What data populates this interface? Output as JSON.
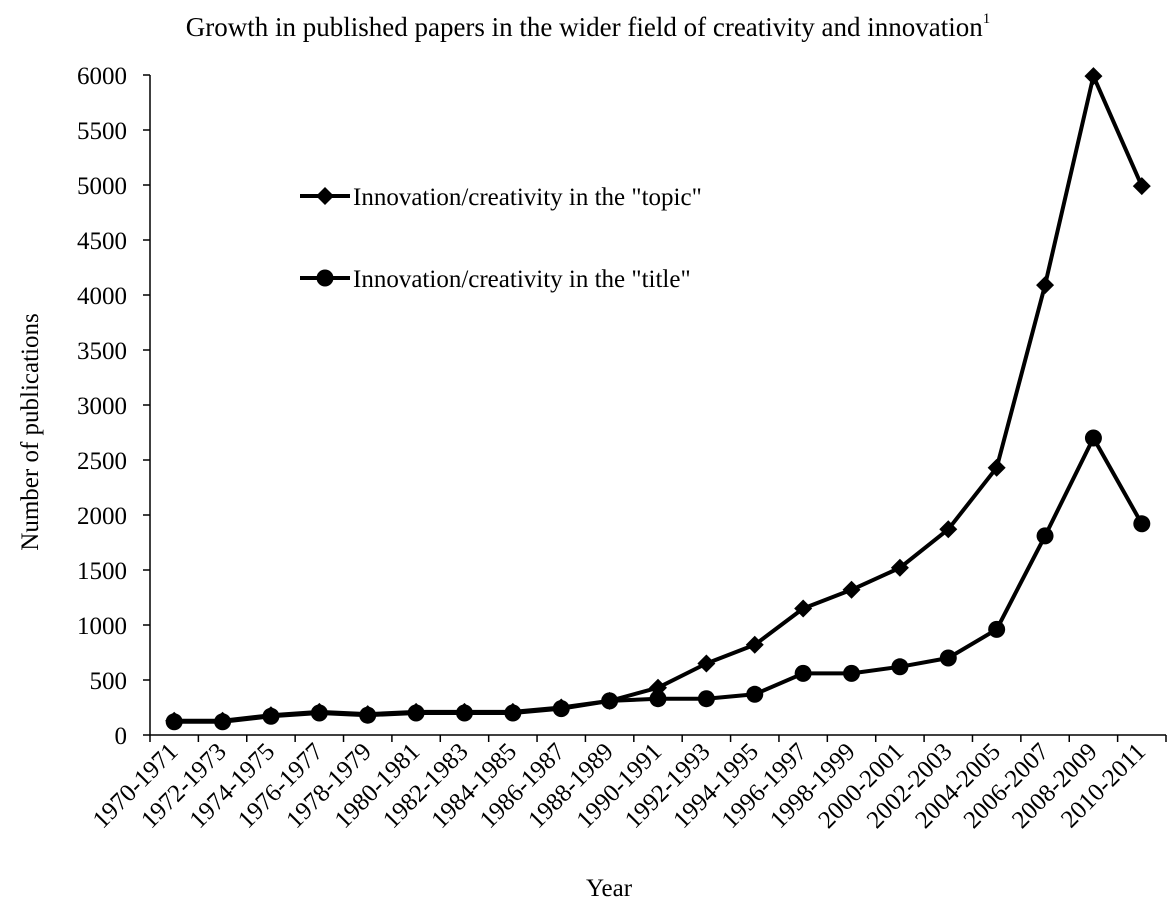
{
  "chart_data": {
    "type": "line",
    "title": "Growth in published papers in the wider field of creativity and innovation",
    "title_superscript": "1",
    "xlabel": "Year",
    "ylabel": "Number of publications",
    "ylim": [
      0,
      6000
    ],
    "yticks": [
      "0",
      "500",
      "1000",
      "1500",
      "2000",
      "2500",
      "3000",
      "3500",
      "4000",
      "4500",
      "5000",
      "5500",
      "6000"
    ],
    "grid": false,
    "legend_position": "upper-left inside plot",
    "categories": [
      "1970-1971",
      "1972-1973",
      "1974-1975",
      "1976-1977",
      "1978-1979",
      "1980-1981",
      "1982-1983",
      "1984-1985",
      "1986-1987",
      "1988-1989",
      "1990-1991",
      "1992-1993",
      "1994-1995",
      "1996-1997",
      "1998-1999",
      "2000-2001",
      "2002-2003",
      "2004-2005",
      "2006-2007",
      "2008-2009",
      "2010-2011"
    ],
    "series": [
      {
        "name": "Innovation/creativity in the \"topic\"",
        "marker": "diamond",
        "color": "#000000",
        "values": [
          130,
          130,
          180,
          210,
          190,
          210,
          210,
          210,
          250,
          310,
          430,
          650,
          820,
          1150,
          1320,
          1520,
          1870,
          2430,
          4090,
          5990,
          4990
        ]
      },
      {
        "name": "Innovation/creativity in the \"title\"",
        "marker": "circle",
        "color": "#000000",
        "values": [
          120,
          120,
          170,
          200,
          180,
          200,
          200,
          200,
          240,
          310,
          330,
          330,
          370,
          560,
          560,
          620,
          700,
          960,
          1810,
          2700,
          1920
        ]
      }
    ]
  }
}
